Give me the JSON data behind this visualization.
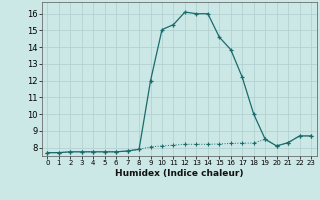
{
  "xlabel": "Humidex (Indice chaleur)",
  "xlim": [
    -0.5,
    23.5
  ],
  "ylim": [
    7.5,
    16.7
  ],
  "xticks": [
    0,
    1,
    2,
    3,
    4,
    5,
    6,
    7,
    8,
    9,
    10,
    11,
    12,
    13,
    14,
    15,
    16,
    17,
    18,
    19,
    20,
    21,
    22,
    23
  ],
  "yticks": [
    8,
    9,
    10,
    11,
    12,
    13,
    14,
    15,
    16
  ],
  "bg_color": "#cce8e6",
  "grid_color": "#b0cece",
  "line_color": "#1a6b6b",
  "upper_x": [
    0,
    1,
    2,
    3,
    4,
    5,
    6,
    7,
    8,
    9,
    10,
    11,
    12,
    13,
    14,
    15,
    16,
    17,
    18,
    19,
    20,
    21,
    22,
    23
  ],
  "upper_y": [
    7.7,
    7.7,
    7.75,
    7.75,
    7.75,
    7.75,
    7.75,
    7.8,
    7.9,
    12.0,
    15.05,
    15.35,
    16.1,
    16.0,
    16.0,
    14.6,
    13.85,
    12.2,
    10.0,
    8.5,
    8.1,
    8.3,
    8.7,
    8.7
  ],
  "lower_x": [
    0,
    1,
    2,
    3,
    4,
    5,
    6,
    7,
    8,
    9,
    10,
    11,
    12,
    13,
    14,
    15,
    16,
    17,
    18,
    19,
    20,
    21,
    22,
    23
  ],
  "lower_y": [
    7.7,
    7.7,
    7.75,
    7.75,
    7.75,
    7.75,
    7.75,
    7.8,
    7.9,
    8.05,
    8.1,
    8.15,
    8.2,
    8.2,
    8.2,
    8.22,
    8.25,
    8.27,
    8.27,
    8.5,
    8.1,
    8.3,
    8.7,
    8.7
  ]
}
